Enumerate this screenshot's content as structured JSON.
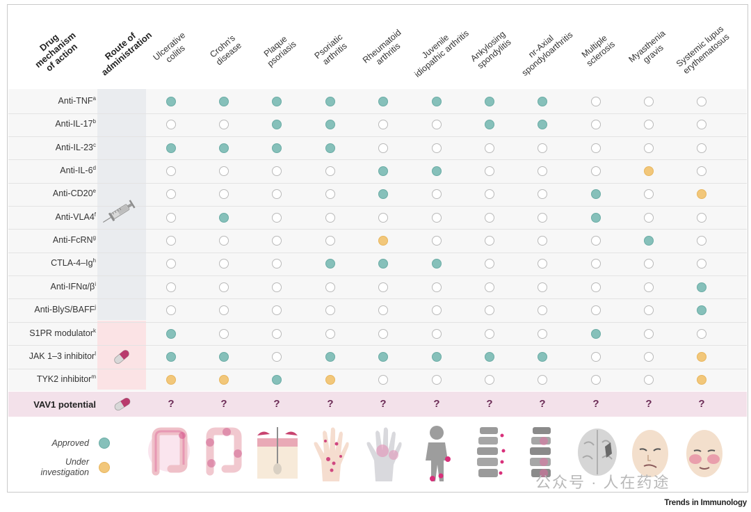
{
  "header": {
    "mechanism": [
      "Drug",
      "mechanism",
      "of action"
    ],
    "route": [
      "Route of",
      "administration"
    ]
  },
  "diseases": [
    {
      "lines": [
        "Ulcerative",
        "colitis"
      ],
      "illustration": "colon-icon"
    },
    {
      "lines": [
        "Crohn's",
        "disease"
      ],
      "illustration": "colon-patches-icon"
    },
    {
      "lines": [
        "Plaque",
        "psoriasis"
      ],
      "illustration": "skin-layer-icon"
    },
    {
      "lines": [
        "Psoriatic",
        "arthritis"
      ],
      "illustration": "hand-lesions-icon"
    },
    {
      "lines": [
        "Rheumatoid",
        "arthritis"
      ],
      "illustration": "hand-joints-icon"
    },
    {
      "lines": [
        "Juvenile",
        "idiopathic arthritis"
      ],
      "illustration": "child-silhouette-icon"
    },
    {
      "lines": [
        "Ankylosing",
        "spondylitis"
      ],
      "illustration": "spine-icon"
    },
    {
      "lines": [
        "nr-Axial",
        "spondyloarthritis"
      ],
      "illustration": "spine-inflamed-icon"
    },
    {
      "lines": [
        "Multiple",
        "sclerosis"
      ],
      "illustration": "brain-icon"
    },
    {
      "lines": [
        "Myasthenia",
        "gravis"
      ],
      "illustration": "face-drooping-icon"
    },
    {
      "lines": [
        "Systemic lupus",
        "erythematosus"
      ],
      "illustration": "face-rash-icon"
    }
  ],
  "rows": [
    {
      "label": "Anti-TNF",
      "sup": "a",
      "status": [
        "A",
        "A",
        "A",
        "A",
        "A",
        "A",
        "A",
        "A",
        "N",
        "N",
        "N"
      ]
    },
    {
      "label": "Anti-IL-17",
      "sup": "b",
      "status": [
        "N",
        "N",
        "A",
        "A",
        "N",
        "N",
        "A",
        "A",
        "N",
        "N",
        "N"
      ]
    },
    {
      "label": "Anti-IL-23",
      "sup": "c",
      "status": [
        "A",
        "A",
        "A",
        "A",
        "N",
        "N",
        "N",
        "N",
        "N",
        "N",
        "N"
      ]
    },
    {
      "label": "Anti-IL-6",
      "sup": "d",
      "status": [
        "N",
        "N",
        "N",
        "N",
        "A",
        "A",
        "N",
        "N",
        "N",
        "I",
        "N"
      ]
    },
    {
      "label": "Anti-CD20",
      "sup": "e",
      "status": [
        "N",
        "N",
        "N",
        "N",
        "A",
        "N",
        "N",
        "N",
        "A",
        "N",
        "I"
      ]
    },
    {
      "label": "Anti-VLA4",
      "sup": "f",
      "status": [
        "N",
        "A",
        "N",
        "N",
        "N",
        "N",
        "N",
        "N",
        "A",
        "N",
        "N"
      ]
    },
    {
      "label": "Anti-FcRN",
      "sup": "g",
      "status": [
        "N",
        "N",
        "N",
        "N",
        "I",
        "N",
        "N",
        "N",
        "N",
        "A",
        "N"
      ]
    },
    {
      "label": "CTLA-4–Ig",
      "sup": "h",
      "status": [
        "N",
        "N",
        "N",
        "A",
        "A",
        "A",
        "N",
        "N",
        "N",
        "N",
        "N"
      ]
    },
    {
      "label": "Anti-IFNα/β",
      "sup": "i",
      "status": [
        "N",
        "N",
        "N",
        "N",
        "N",
        "N",
        "N",
        "N",
        "N",
        "N",
        "A"
      ]
    },
    {
      "label": "Anti-BlyS/BAFF",
      "sup": "j",
      "status": [
        "N",
        "N",
        "N",
        "N",
        "N",
        "N",
        "N",
        "N",
        "N",
        "N",
        "A"
      ]
    },
    {
      "label": "S1PR modulator",
      "sup": "k",
      "status": [
        "A",
        "N",
        "N",
        "N",
        "N",
        "N",
        "N",
        "N",
        "A",
        "N",
        "N"
      ]
    },
    {
      "label": "JAK 1–3 inhibitor",
      "sup": "l",
      "status": [
        "A",
        "A",
        "N",
        "A",
        "A",
        "A",
        "A",
        "A",
        "N",
        "N",
        "I"
      ]
    },
    {
      "label": "TYK2 inhibitor",
      "sup": "m",
      "status": [
        "I",
        "I",
        "A",
        "I",
        "N",
        "N",
        "N",
        "N",
        "N",
        "N",
        "I"
      ]
    }
  ],
  "routes": {
    "injection": "syringe-icon",
    "oral": "capsule-icon"
  },
  "vav": {
    "label": "VAV1 potential",
    "icon": "capsule-icon",
    "mark": "?"
  },
  "legend": {
    "approved": "Approved",
    "investigation": [
      "Under",
      "investigation"
    ]
  },
  "colors": {
    "approved": "#86c0ba",
    "investigation": "#f2c77a",
    "empty": "#b9b9b9",
    "vav_band": "#f3e1ea",
    "injection_band": "#eaecef",
    "oral_band": "#fbe3e5",
    "question": "#6a2a55"
  },
  "footer": {
    "brand": "Trends in Immunology",
    "watermark": "公众号 · 人在药途"
  }
}
